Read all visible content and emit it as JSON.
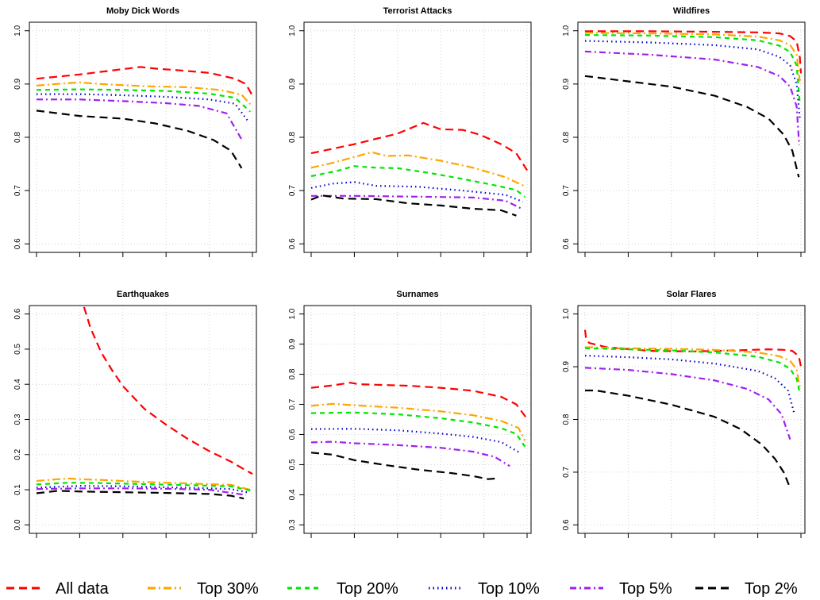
{
  "series_styles": [
    {
      "name": "All data",
      "color": "#ff0000",
      "dash": "10,6"
    },
    {
      "name": "Top 30%",
      "color": "#ffa500",
      "dash": "10,4,2,4"
    },
    {
      "name": "Top 20%",
      "color": "#00e600",
      "dash": "6,5"
    },
    {
      "name": "Top 10%",
      "color": "#0000cc",
      "dash": "1.5,4"
    },
    {
      "name": "Top 5%",
      "color": "#a020f0",
      "dash": "8,4,2,4"
    },
    {
      "name": "Top 2%",
      "color": "#000000",
      "dash": "10,6"
    }
  ],
  "legend": {
    "items": [
      "All data",
      "Top 30%",
      "Top 20%",
      "Top 10%",
      "Top 5%",
      "Top 2%"
    ]
  },
  "chart_data": [
    {
      "type": "line",
      "title": "Moby Dick Words",
      "ylim": [
        0.6,
        1.0
      ],
      "yticks": [
        "0.6",
        "0.7",
        "0.8",
        "0.9",
        "1.0"
      ],
      "xlim": [
        0,
        1
      ],
      "grid": true,
      "series": [
        {
          "name": "All data",
          "x": [
            0.0,
            0.2,
            0.4,
            0.48,
            0.55,
            0.65,
            0.8,
            0.92,
            0.97,
            1.0
          ],
          "y": [
            0.91,
            0.918,
            0.928,
            0.932,
            0.929,
            0.926,
            0.921,
            0.91,
            0.9,
            0.878
          ]
        },
        {
          "name": "Top 30%",
          "x": [
            0.0,
            0.12,
            0.2,
            0.3,
            0.5,
            0.7,
            0.85,
            0.95,
            0.99
          ],
          "y": [
            0.897,
            0.901,
            0.903,
            0.9,
            0.896,
            0.894,
            0.889,
            0.88,
            0.862
          ]
        },
        {
          "name": "Top 20%",
          "x": [
            0.0,
            0.2,
            0.4,
            0.6,
            0.8,
            0.92,
            0.99
          ],
          "y": [
            0.889,
            0.89,
            0.889,
            0.887,
            0.882,
            0.874,
            0.848
          ]
        },
        {
          "name": "Top 10%",
          "x": [
            0.0,
            0.2,
            0.4,
            0.6,
            0.8,
            0.92,
            0.98
          ],
          "y": [
            0.881,
            0.881,
            0.879,
            0.876,
            0.871,
            0.863,
            0.83
          ]
        },
        {
          "name": "Top 5%",
          "x": [
            0.0,
            0.2,
            0.4,
            0.6,
            0.75,
            0.88,
            0.95
          ],
          "y": [
            0.871,
            0.871,
            0.868,
            0.864,
            0.859,
            0.845,
            0.796
          ]
        },
        {
          "name": "Top 2%",
          "x": [
            0.0,
            0.1,
            0.2,
            0.4,
            0.55,
            0.7,
            0.82,
            0.9,
            0.95
          ],
          "y": [
            0.85,
            0.845,
            0.84,
            0.835,
            0.826,
            0.812,
            0.795,
            0.775,
            0.742
          ]
        }
      ]
    },
    {
      "type": "line",
      "title": "Terrorist Attacks",
      "ylim": [
        0.6,
        1.0
      ],
      "yticks": [
        "0.6",
        "0.7",
        "0.8",
        "0.9",
        "1.0"
      ],
      "xlim": [
        0,
        1
      ],
      "grid": true,
      "series": [
        {
          "name": "All data",
          "x": [
            0.0,
            0.2,
            0.4,
            0.52,
            0.6,
            0.7,
            0.78,
            0.88,
            0.95,
            1.0
          ],
          "y": [
            0.77,
            0.787,
            0.807,
            0.827,
            0.815,
            0.814,
            0.805,
            0.787,
            0.77,
            0.738
          ]
        },
        {
          "name": "Top 30%",
          "x": [
            0.0,
            0.1,
            0.2,
            0.28,
            0.35,
            0.45,
            0.6,
            0.75,
            0.9,
            0.99
          ],
          "y": [
            0.743,
            0.752,
            0.763,
            0.772,
            0.765,
            0.766,
            0.756,
            0.743,
            0.725,
            0.708
          ]
        },
        {
          "name": "Top 20%",
          "x": [
            0.0,
            0.12,
            0.2,
            0.3,
            0.4,
            0.55,
            0.7,
            0.85,
            0.95,
            0.99
          ],
          "y": [
            0.727,
            0.737,
            0.746,
            0.743,
            0.742,
            0.733,
            0.722,
            0.71,
            0.701,
            0.688
          ]
        },
        {
          "name": "Top 10%",
          "x": [
            0.0,
            0.1,
            0.2,
            0.3,
            0.5,
            0.7,
            0.9,
            0.98
          ],
          "y": [
            0.705,
            0.713,
            0.716,
            0.709,
            0.707,
            0.7,
            0.692,
            0.679
          ]
        },
        {
          "name": "Top 5%",
          "x": [
            0.0,
            0.2,
            0.4,
            0.6,
            0.75,
            0.9,
            0.97
          ],
          "y": [
            0.69,
            0.69,
            0.689,
            0.688,
            0.687,
            0.681,
            0.667
          ]
        },
        {
          "name": "Top 2%",
          "x": [
            0.0,
            0.05,
            0.15,
            0.3,
            0.45,
            0.6,
            0.75,
            0.88,
            0.95
          ],
          "y": [
            0.683,
            0.691,
            0.685,
            0.684,
            0.676,
            0.672,
            0.666,
            0.663,
            0.653
          ]
        }
      ]
    },
    {
      "type": "line",
      "title": "Wildfires",
      "ylim": [
        0.6,
        1.0
      ],
      "yticks": [
        "0.6",
        "0.7",
        "0.8",
        "0.9",
        "1.0"
      ],
      "xlim": [
        0,
        1
      ],
      "grid": true,
      "series": [
        {
          "name": "All data",
          "x": [
            0.0,
            0.3,
            0.6,
            0.8,
            0.9,
            0.95,
            0.98,
            0.995,
            1.0
          ],
          "y": [
            0.999,
            0.999,
            0.998,
            0.997,
            0.995,
            0.99,
            0.98,
            0.95,
            0.92
          ]
        },
        {
          "name": "Top 30%",
          "x": [
            0.0,
            0.3,
            0.6,
            0.8,
            0.9,
            0.95,
            0.98,
            0.995
          ],
          "y": [
            0.996,
            0.995,
            0.993,
            0.989,
            0.982,
            0.973,
            0.955,
            0.905
          ]
        },
        {
          "name": "Top 20%",
          "x": [
            0.0,
            0.3,
            0.6,
            0.8,
            0.9,
            0.95,
            0.98,
            0.995
          ],
          "y": [
            0.992,
            0.991,
            0.988,
            0.982,
            0.972,
            0.96,
            0.935,
            0.862
          ]
        },
        {
          "name": "Top 10%",
          "x": [
            0.0,
            0.3,
            0.6,
            0.8,
            0.9,
            0.95,
            0.98,
            0.995
          ],
          "y": [
            0.981,
            0.978,
            0.973,
            0.965,
            0.951,
            0.935,
            0.9,
            0.835
          ]
        },
        {
          "name": "Top 5%",
          "x": [
            0.0,
            0.3,
            0.6,
            0.8,
            0.9,
            0.95,
            0.98,
            0.992
          ],
          "y": [
            0.961,
            0.955,
            0.946,
            0.932,
            0.915,
            0.895,
            0.858,
            0.785
          ]
        },
        {
          "name": "Top 2%",
          "x": [
            0.0,
            0.2,
            0.4,
            0.6,
            0.75,
            0.85,
            0.92,
            0.96,
            0.99
          ],
          "y": [
            0.915,
            0.905,
            0.895,
            0.878,
            0.857,
            0.835,
            0.805,
            0.775,
            0.725
          ]
        }
      ]
    },
    {
      "type": "line",
      "title": "Earthquakes",
      "ylim": [
        0.0,
        0.6
      ],
      "yticks": [
        "0.0",
        "0.1",
        "0.2",
        "0.3",
        "0.4",
        "0.5",
        "0.6"
      ],
      "xlim": [
        0,
        1
      ],
      "grid": true,
      "series": [
        {
          "name": "All data",
          "x": [
            0.22,
            0.25,
            0.3,
            0.35,
            0.4,
            0.5,
            0.6,
            0.7,
            0.8,
            0.9,
            0.95,
            1.0
          ],
          "y": [
            0.62,
            0.56,
            0.49,
            0.44,
            0.395,
            0.33,
            0.285,
            0.245,
            0.21,
            0.18,
            0.162,
            0.145
          ]
        },
        {
          "name": "Top 30%",
          "x": [
            0.0,
            0.1,
            0.15,
            0.2,
            0.3,
            0.5,
            0.7,
            0.9,
            0.99
          ],
          "y": [
            0.125,
            0.13,
            0.132,
            0.13,
            0.128,
            0.122,
            0.118,
            0.114,
            0.1
          ]
        },
        {
          "name": "Top 20%",
          "x": [
            0.0,
            0.15,
            0.3,
            0.5,
            0.7,
            0.9,
            0.99
          ],
          "y": [
            0.115,
            0.12,
            0.119,
            0.116,
            0.113,
            0.11,
            0.098
          ]
        },
        {
          "name": "Top 10%",
          "x": [
            0.0,
            0.2,
            0.4,
            0.6,
            0.8,
            0.9,
            0.98
          ],
          "y": [
            0.106,
            0.111,
            0.11,
            0.107,
            0.104,
            0.102,
            0.092
          ]
        },
        {
          "name": "Top 5%",
          "x": [
            0.0,
            0.2,
            0.4,
            0.6,
            0.8,
            0.97
          ],
          "y": [
            0.102,
            0.104,
            0.104,
            0.103,
            0.1,
            0.085
          ]
        },
        {
          "name": "Top 2%",
          "x": [
            0.0,
            0.1,
            0.2,
            0.4,
            0.6,
            0.8,
            0.9,
            0.96
          ],
          "y": [
            0.09,
            0.097,
            0.095,
            0.093,
            0.091,
            0.088,
            0.083,
            0.075
          ]
        }
      ]
    },
    {
      "type": "line",
      "title": "Surnames",
      "ylim": [
        0.3,
        1.0
      ],
      "yticks": [
        "0.3",
        "0.4",
        "0.5",
        "0.6",
        "0.7",
        "0.8",
        "0.9",
        "1.0"
      ],
      "xlim": [
        0,
        1
      ],
      "grid": true,
      "series": [
        {
          "name": "All data",
          "x": [
            0.0,
            0.1,
            0.18,
            0.22,
            0.3,
            0.45,
            0.6,
            0.75,
            0.88,
            0.95,
            1.0
          ],
          "y": [
            0.755,
            0.763,
            0.772,
            0.767,
            0.765,
            0.762,
            0.755,
            0.745,
            0.725,
            0.7,
            0.652
          ]
        },
        {
          "name": "Top 30%",
          "x": [
            0.0,
            0.1,
            0.2,
            0.4,
            0.6,
            0.75,
            0.88,
            0.96,
            0.99
          ],
          "y": [
            0.695,
            0.702,
            0.697,
            0.689,
            0.677,
            0.664,
            0.645,
            0.622,
            0.58
          ]
        },
        {
          "name": "Top 20%",
          "x": [
            0.0,
            0.2,
            0.4,
            0.6,
            0.75,
            0.88,
            0.95,
            0.99
          ],
          "y": [
            0.671,
            0.673,
            0.667,
            0.654,
            0.64,
            0.621,
            0.602,
            0.56
          ]
        },
        {
          "name": "Top 10%",
          "x": [
            0.0,
            0.2,
            0.4,
            0.6,
            0.75,
            0.88,
            0.97
          ],
          "y": [
            0.618,
            0.619,
            0.614,
            0.603,
            0.592,
            0.575,
            0.538
          ]
        },
        {
          "name": "Top 5%",
          "x": [
            0.0,
            0.1,
            0.2,
            0.4,
            0.6,
            0.75,
            0.85,
            0.92
          ],
          "y": [
            0.574,
            0.576,
            0.571,
            0.565,
            0.556,
            0.543,
            0.526,
            0.495
          ]
        },
        {
          "name": "Top 2%",
          "x": [
            0.0,
            0.1,
            0.2,
            0.35,
            0.5,
            0.65,
            0.75,
            0.82,
            0.87
          ],
          "y": [
            0.54,
            0.533,
            0.515,
            0.498,
            0.483,
            0.472,
            0.462,
            0.452,
            0.455
          ]
        }
      ]
    },
    {
      "type": "line",
      "title": "Solar Flares",
      "ylim": [
        0.6,
        1.0
      ],
      "yticks": [
        "0.6",
        "0.7",
        "0.8",
        "0.9",
        "1.0"
      ],
      "xlim": [
        0,
        1
      ],
      "grid": true,
      "series": [
        {
          "name": "All data",
          "x": [
            0.0,
            0.005,
            0.02,
            0.1,
            0.3,
            0.5,
            0.7,
            0.85,
            0.92,
            0.96,
            0.99,
            1.0
          ],
          "y": [
            0.97,
            0.952,
            0.945,
            0.937,
            0.93,
            0.929,
            0.931,
            0.933,
            0.932,
            0.93,
            0.92,
            0.9
          ]
        },
        {
          "name": "Top 30%",
          "x": [
            0.0,
            0.2,
            0.4,
            0.6,
            0.8,
            0.9,
            0.95,
            0.98,
            0.995
          ],
          "y": [
            0.937,
            0.935,
            0.934,
            0.932,
            0.927,
            0.92,
            0.911,
            0.895,
            0.86
          ]
        },
        {
          "name": "Top 20%",
          "x": [
            0.0,
            0.2,
            0.4,
            0.6,
            0.8,
            0.9,
            0.95,
            0.98,
            0.995
          ],
          "y": [
            0.935,
            0.933,
            0.931,
            0.927,
            0.919,
            0.908,
            0.896,
            0.877,
            0.85
          ]
        },
        {
          "name": "Top 10%",
          "x": [
            0.0,
            0.2,
            0.4,
            0.6,
            0.8,
            0.88,
            0.94,
            0.97
          ],
          "y": [
            0.921,
            0.918,
            0.914,
            0.906,
            0.892,
            0.878,
            0.855,
            0.81
          ]
        },
        {
          "name": "Top 5%",
          "x": [
            0.0,
            0.2,
            0.4,
            0.6,
            0.75,
            0.85,
            0.91,
            0.95
          ],
          "y": [
            0.898,
            0.894,
            0.886,
            0.874,
            0.858,
            0.838,
            0.81,
            0.762
          ]
        },
        {
          "name": "Top 2%",
          "x": [
            0.0,
            0.05,
            0.2,
            0.4,
            0.6,
            0.72,
            0.82,
            0.88,
            0.92,
            0.95
          ],
          "y": [
            0.855,
            0.855,
            0.845,
            0.828,
            0.805,
            0.782,
            0.752,
            0.725,
            0.7,
            0.67
          ]
        }
      ]
    }
  ]
}
